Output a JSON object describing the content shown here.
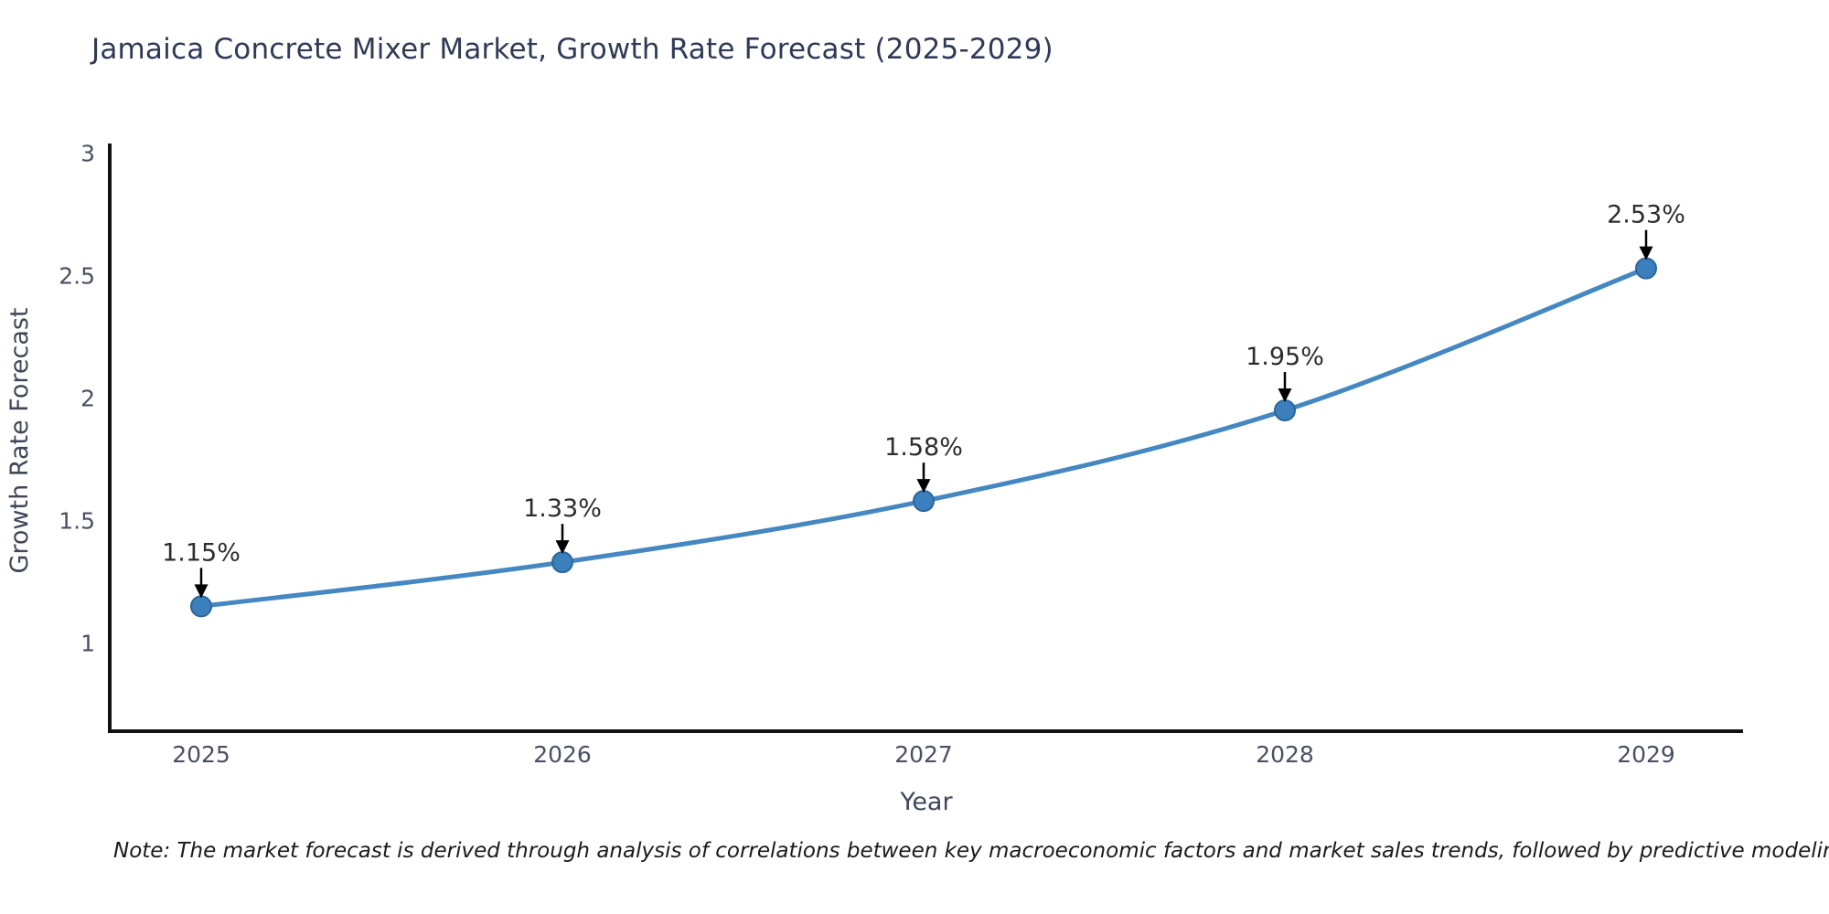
{
  "chart_data": {
    "type": "line",
    "title": "Jamaica Concrete Mixer Market, Growth Rate Forecast (2025-2029)",
    "xlabel": "Year",
    "ylabel": "Growth Rate Forecast",
    "categories": [
      "2025",
      "2026",
      "2027",
      "2028",
      "2029"
    ],
    "values": [
      1.15,
      1.33,
      1.58,
      1.95,
      2.53
    ],
    "point_labels": [
      "1.15%",
      "1.33%",
      "1.58%",
      "1.95%",
      "2.53%"
    ],
    "yticks": [
      1,
      1.5,
      2,
      2.5,
      3
    ],
    "ytick_labels": [
      "1",
      "1.5",
      "2",
      "2.5",
      "3"
    ],
    "ylim": [
      0.64,
      3.04
    ],
    "grid": false,
    "legend": "none",
    "annotation_style": "down-arrow",
    "colors": {
      "line": "#4587c1",
      "marker_fill": "#3c7fbd",
      "marker_edge": "#2a669c",
      "axis": "#111111",
      "tick_label": "#4a5061",
      "axis_title": "#3f4656",
      "title": "#2f3a56",
      "annotation": "#2d2d2d",
      "arrow": "#000000",
      "footnote": "#1a1a1a"
    }
  },
  "footnote": "Note: The market forecast is derived through analysis of correlations between key macroeconomic factors and market sales trends, followed by predictive modeling to project future sales"
}
